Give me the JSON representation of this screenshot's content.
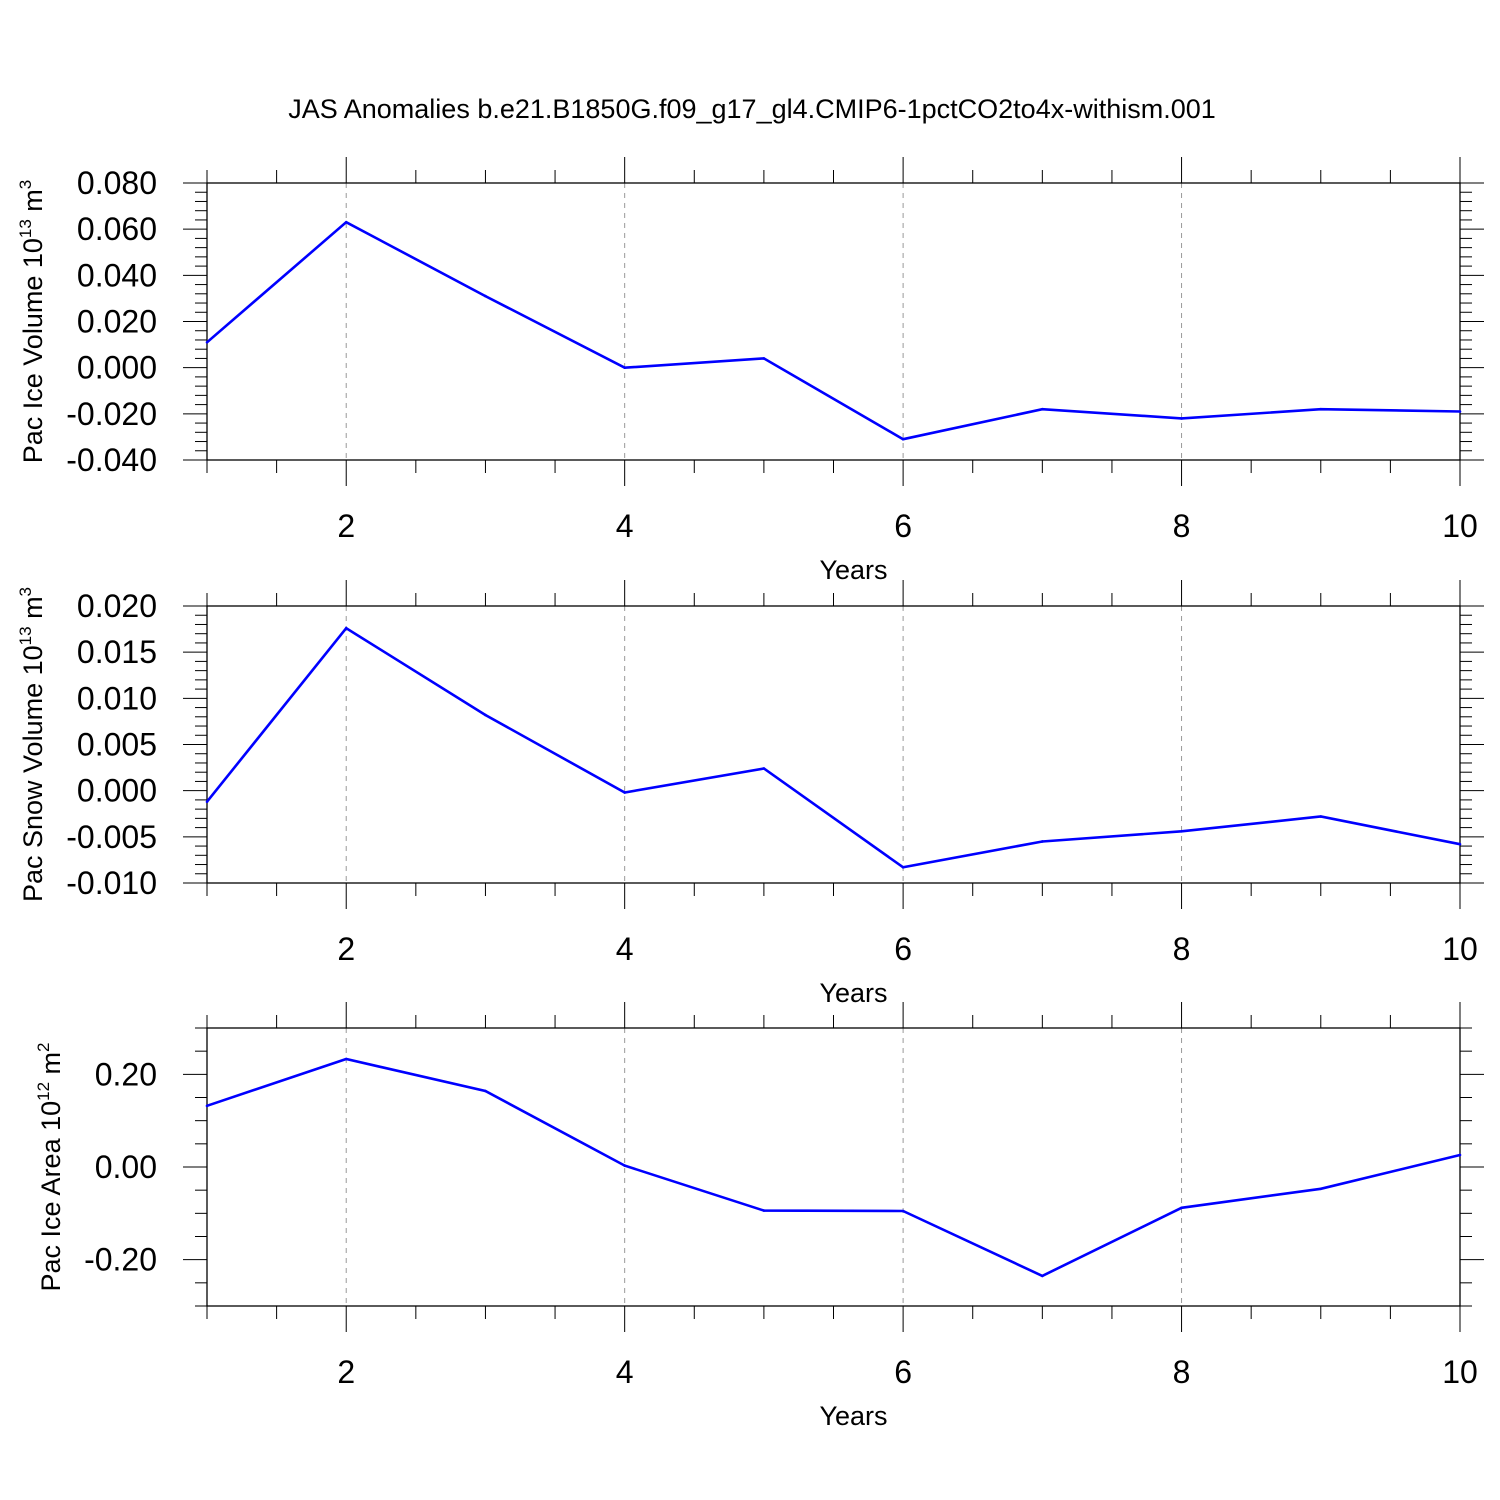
{
  "title": "JAS Anomalies b.e21.B1850G.f09_g17_gl4.CMIP6-1pctCO2to4x-withism.001",
  "colors": {
    "line": "#0000ff",
    "axis": "#000000",
    "grid": "#999999"
  },
  "chart_data": [
    {
      "type": "line",
      "ylabel": "Pac Ice Volume 10",
      "ylabel_exp": "13",
      "ylabel_unit": " m",
      "ylabel_unit_exp": "3",
      "xlabel": "Years",
      "xlim": [
        1,
        10
      ],
      "ylim": [
        -0.04,
        0.08
      ],
      "xticks": [
        2,
        4,
        6,
        8,
        10
      ],
      "xtick_labels": [
        "2",
        "4",
        "6",
        "8",
        "10"
      ],
      "yticks": [
        -0.04,
        -0.02,
        0.0,
        0.02,
        0.04,
        0.06,
        0.08
      ],
      "ytick_labels": [
        "-0.040",
        "-0.020",
        "0.000",
        "0.020",
        "0.040",
        "0.060",
        "0.080"
      ],
      "yminor_step": 0.004,
      "x": [
        1,
        2,
        3,
        4,
        5,
        6,
        7,
        8,
        9,
        10
      ],
      "series": [
        {
          "name": "Pac Ice Volume",
          "values": [
            0.011,
            0.063,
            0.031,
            0.0,
            0.004,
            -0.031,
            -0.018,
            -0.022,
            -0.018,
            -0.019
          ]
        }
      ]
    },
    {
      "type": "line",
      "ylabel": "Pac Snow Volume 10",
      "ylabel_exp": "13",
      "ylabel_unit": " m",
      "ylabel_unit_exp": "3",
      "xlabel": "Years",
      "xlim": [
        1,
        10
      ],
      "ylim": [
        -0.01,
        0.02
      ],
      "xticks": [
        2,
        4,
        6,
        8,
        10
      ],
      "xtick_labels": [
        "2",
        "4",
        "6",
        "8",
        "10"
      ],
      "yticks": [
        -0.01,
        -0.005,
        0.0,
        0.005,
        0.01,
        0.015,
        0.02
      ],
      "ytick_labels": [
        "-0.010",
        "-0.005",
        "0.000",
        "0.005",
        "0.010",
        "0.015",
        "0.020"
      ],
      "yminor_step": 0.001,
      "x": [
        1,
        2,
        3,
        4,
        5,
        6,
        7,
        8,
        9,
        10
      ],
      "series": [
        {
          "name": "Pac Snow Volume",
          "values": [
            -0.0012,
            0.0176,
            0.0082,
            -0.0002,
            0.0024,
            -0.0083,
            -0.0055,
            -0.0044,
            -0.0028,
            -0.0058
          ]
        }
      ]
    },
    {
      "type": "line",
      "ylabel": "Pac Ice Area 10",
      "ylabel_exp": "12",
      "ylabel_unit": " m",
      "ylabel_unit_exp": "2",
      "xlabel": "Years",
      "xlim": [
        1,
        10
      ],
      "ylim": [
        -0.3,
        0.3
      ],
      "xticks": [
        2,
        4,
        6,
        8,
        10
      ],
      "xtick_labels": [
        "2",
        "4",
        "6",
        "8",
        "10"
      ],
      "yticks": [
        -0.2,
        0.0,
        0.2
      ],
      "ytick_labels": [
        "-0.20",
        "0.00",
        "0.20"
      ],
      "yminor_step": 0.05,
      "x": [
        1,
        2,
        3,
        4,
        5,
        6,
        7,
        8,
        9,
        10
      ],
      "series": [
        {
          "name": "Pac Ice Area",
          "values": [
            0.132,
            0.233,
            0.164,
            0.003,
            -0.094,
            -0.095,
            -0.235,
            -0.088,
            -0.047,
            0.026
          ]
        }
      ]
    }
  ]
}
